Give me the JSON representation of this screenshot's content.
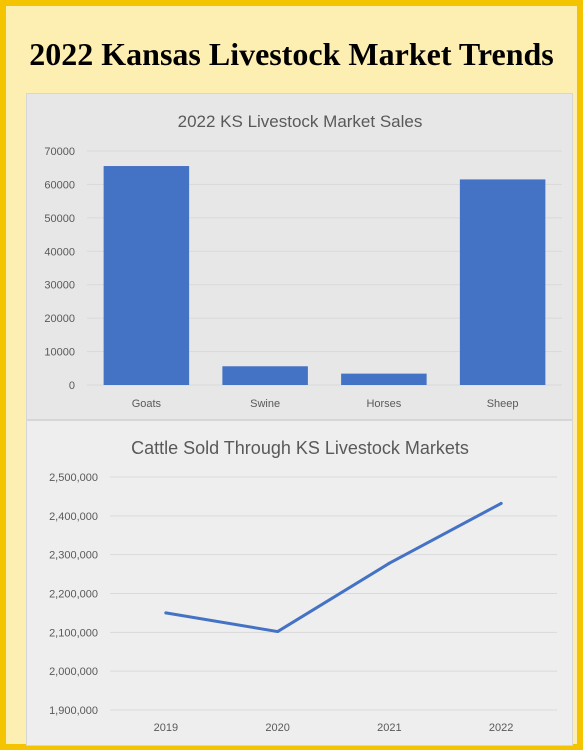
{
  "page": {
    "title": "2022 Kansas Livestock Market Trends"
  },
  "colors": {
    "series": "#4472c4",
    "frame_border": "#f5c400",
    "frame_fill": "#fdeeb2"
  },
  "chart_data": [
    {
      "type": "bar",
      "title": "2022 KS Livestock Market Sales",
      "categories": [
        "Goats",
        "Swine",
        "Horses",
        "Sheep"
      ],
      "values": [
        65500,
        5600,
        3400,
        61500
      ],
      "ylim": [
        0,
        70000
      ],
      "yticks": [
        0,
        10000,
        20000,
        30000,
        40000,
        50000,
        60000,
        70000
      ],
      "ytick_labels": [
        "0",
        "10000",
        "20000",
        "30000",
        "40000",
        "50000",
        "60000",
        "70000"
      ],
      "grid": true,
      "legend": "none"
    },
    {
      "type": "line",
      "title": "Cattle Sold Through KS Livestock Markets",
      "categories": [
        "2019",
        "2020",
        "2021",
        "2022"
      ],
      "values": [
        2150000,
        2102000,
        2278000,
        2432000
      ],
      "ylim": [
        1900000,
        2500000
      ],
      "yticks": [
        1900000,
        2000000,
        2100000,
        2200000,
        2300000,
        2400000,
        2500000
      ],
      "ytick_labels": [
        "1,900,000",
        "2,000,000",
        "2,100,000",
        "2,200,000",
        "2,300,000",
        "2,400,000",
        "2,500,000"
      ],
      "grid": true,
      "legend": "none"
    }
  ]
}
